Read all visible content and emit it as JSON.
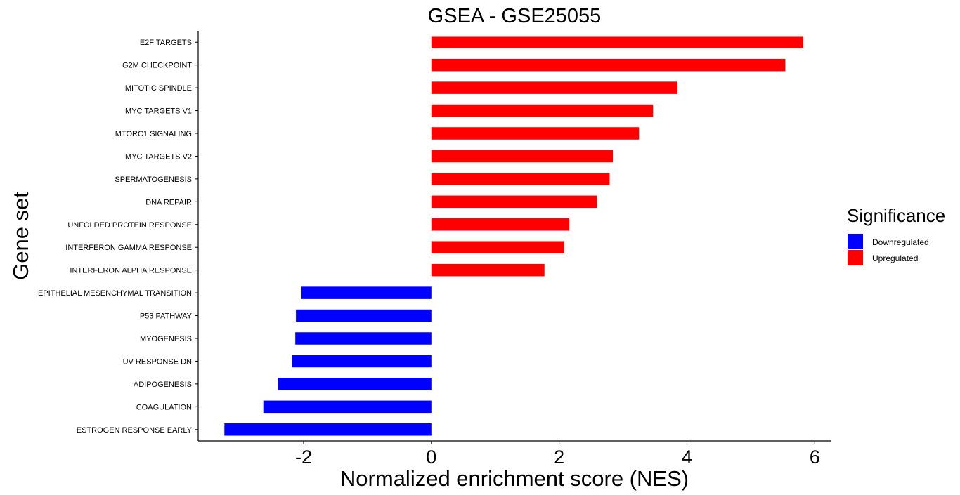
{
  "chart_data": {
    "type": "bar",
    "orientation": "horizontal",
    "title": "GSEA - GSE25055",
    "xlabel": "Normalized enrichment score (NES)",
    "ylabel": "Gene set",
    "xlim": [
      -3.65,
      6.25
    ],
    "xticks": [
      -2,
      0,
      2,
      4,
      6
    ],
    "xtick_labels": [
      "-2",
      "0",
      "2",
      "4",
      "6"
    ],
    "grid": false,
    "categories": [
      "E2F TARGETS",
      "G2M CHECKPOINT",
      "MITOTIC SPINDLE",
      "MYC TARGETS V1",
      "MTORC1 SIGNALING",
      "MYC TARGETS V2",
      "SPERMATOGENESIS",
      "DNA REPAIR",
      "UNFOLDED PROTEIN RESPONSE",
      "INTERFERON GAMMA RESPONSE",
      "INTERFERON ALPHA RESPONSE",
      "EPITHELIAL MESENCHYMAL TRANSITION",
      "P53 PATHWAY",
      "MYOGENESIS",
      "UV RESPONSE DN",
      "ADIPOGENESIS",
      "COAGULATION",
      "ESTROGEN RESPONSE EARLY"
    ],
    "values": [
      5.82,
      5.54,
      3.85,
      3.47,
      3.25,
      2.84,
      2.79,
      2.59,
      2.16,
      2.08,
      1.77,
      -2.04,
      -2.12,
      -2.13,
      -2.18,
      -2.4,
      -2.63,
      -3.24
    ],
    "groups": [
      "Upregulated",
      "Upregulated",
      "Upregulated",
      "Upregulated",
      "Upregulated",
      "Upregulated",
      "Upregulated",
      "Upregulated",
      "Upregulated",
      "Upregulated",
      "Upregulated",
      "Downregulated",
      "Downregulated",
      "Downregulated",
      "Downregulated",
      "Downregulated",
      "Downregulated",
      "Downregulated"
    ],
    "legend": {
      "title": "Significance",
      "position": "right",
      "entries": [
        {
          "label": "Downregulated",
          "color": "#0000ff"
        },
        {
          "label": "Upregulated",
          "color": "#ff0000"
        }
      ]
    },
    "colors": {
      "Upregulated": "#ff0000",
      "Downregulated": "#0000ff"
    }
  }
}
